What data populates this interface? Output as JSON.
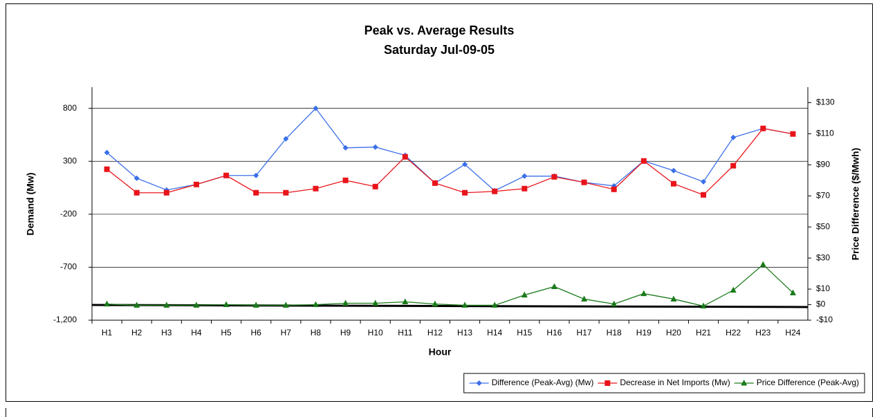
{
  "chart_data": {
    "type": "line",
    "title": "Peak vs. Average Results",
    "subtitle": "Saturday Jul-09-05",
    "x_label": "Hour",
    "y_label": "Demand (Mw)",
    "y2_label": "Price Difference ($/Mwh)",
    "categories": [
      "H1",
      "H2",
      "H3",
      "H4",
      "H5",
      "H6",
      "H7",
      "H8",
      "H9",
      "H10",
      "H11",
      "H12",
      "H13",
      "H14",
      "H15",
      "H16",
      "H17",
      "H18",
      "H19",
      "H20",
      "H21",
      "H22",
      "H23",
      "H24"
    ],
    "series": [
      {
        "name": "Difference (Peak-Avg) (Mw)",
        "color": "#3a6fe8",
        "marker": "diamond",
        "values": [
          382,
          140,
          29,
          81,
          166,
          166,
          512,
          800,
          427,
          434,
          356,
          94,
          271,
          22,
          160,
          160,
          101,
          68,
          303,
          212,
          107,
          525,
          610,
          558
        ]
      },
      {
        "name": "Decrease in Net Imports (Mw)",
        "color": "#e8141a",
        "marker": "square",
        "values": [
          225,
          3,
          3,
          81,
          166,
          3,
          3,
          42,
          120,
          61,
          342,
          94,
          3,
          16,
          42,
          153,
          101,
          35,
          303,
          88,
          -17,
          258,
          610,
          558
        ]
      },
      {
        "name": "Price Difference (Peak-Avg)",
        "color": "#1a7a1a",
        "marker": "triangle",
        "axis": "y2",
        "values": [
          0.4,
          -0.4,
          -0.4,
          -0.4,
          0,
          -0.4,
          -0.4,
          0,
          0.9,
          0.9,
          1.8,
          0.4,
          -0.4,
          -0.4,
          6.2,
          11.6,
          3.6,
          0.4,
          7.1,
          3.6,
          -0.9,
          9.3,
          25.8,
          7.6
        ]
      }
    ],
    "ylim": [
      -1200,
      1000
    ],
    "yticks": [
      {
        "value": -1200,
        "label": "-1,200"
      },
      -700,
      -200,
      300,
      800
    ],
    "y2lim": [
      -10,
      140
    ],
    "y2ticks": [
      {
        "value": -10,
        "label": "-$10"
      },
      {
        "value": 0,
        "label": "$0"
      },
      {
        "value": 10,
        "label": "$10"
      },
      {
        "value": 30,
        "label": "$30"
      },
      {
        "value": 50,
        "label": "$50"
      },
      {
        "value": 70,
        "label": "$70"
      },
      {
        "value": 90,
        "label": "$90"
      },
      {
        "value": 110,
        "label": "$110"
      },
      {
        "value": 130,
        "label": "$130"
      }
    ],
    "grid": true,
    "legend": "bottom-right"
  }
}
